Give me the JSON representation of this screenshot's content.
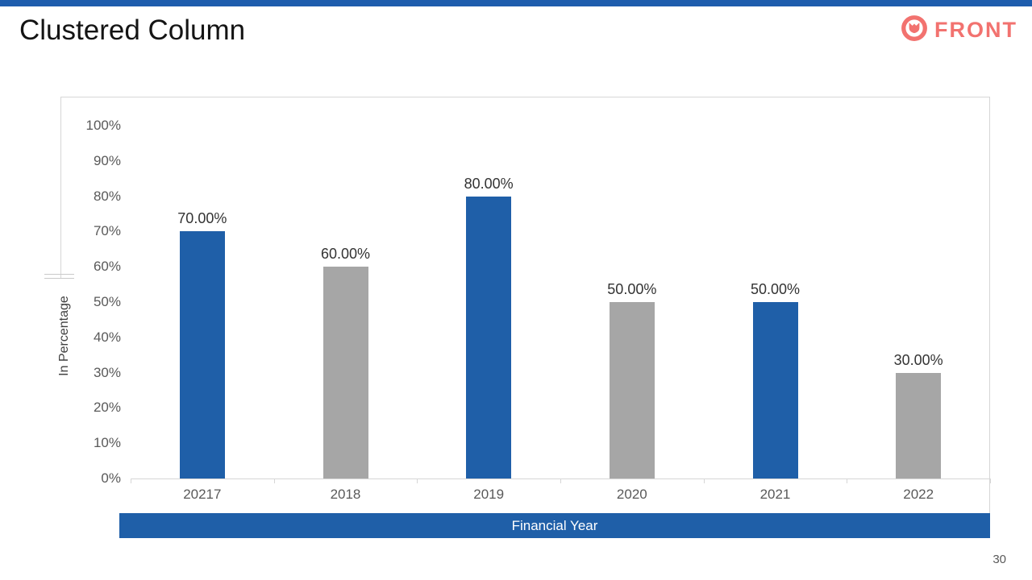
{
  "slide": {
    "title": "Clustered Column",
    "page_number": "30",
    "accent_bar_color": "#1E5DAD",
    "logo": {
      "text": "FRONT",
      "color": "#F2726F",
      "icon": "front-logo-icon"
    }
  },
  "chart_data": {
    "type": "bar",
    "title": "",
    "categories": [
      "20217",
      "2018",
      "2019",
      "2020",
      "2021",
      "2022"
    ],
    "values": [
      70,
      60,
      80,
      50,
      50,
      30
    ],
    "value_labels": [
      "70.00%",
      "60.00%",
      "80.00%",
      "50.00%",
      "50.00%",
      "30.00%"
    ],
    "bar_colors": [
      "#1F5FA8",
      "#A6A6A6",
      "#1F5FA8",
      "#A6A6A6",
      "#1F5FA8",
      "#A6A6A6"
    ],
    "xlabel": "Financial Year",
    "ylabel": "In Percentage",
    "ylim": [
      0,
      100
    ],
    "ytick_step": 10,
    "yticks": [
      "100%",
      "90%",
      "80%",
      "70%",
      "60%",
      "50%",
      "40%",
      "30%",
      "20%",
      "10%",
      "0%"
    ],
    "grid": false,
    "legend": "none",
    "xlabel_band_color": "#1F5FA8",
    "axis_color": "#D6D6D6",
    "tick_label_color": "#595959",
    "value_label_color": "#333333"
  }
}
